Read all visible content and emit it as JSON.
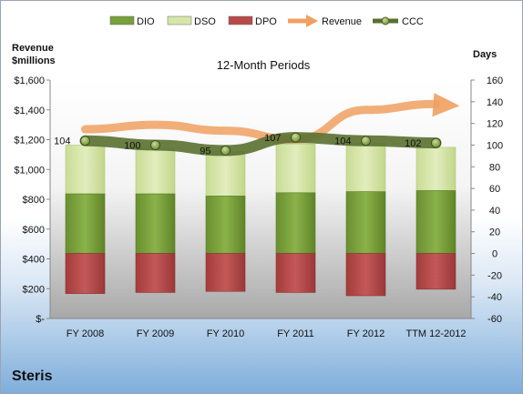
{
  "chart_data": {
    "type": "bar",
    "title": "12-Month Periods",
    "company": "Steris",
    "y_left_label_line1": "Revenue",
    "y_left_label_line2": "$millions",
    "y_right_label": "Days",
    "categories": [
      "FY 2008",
      "FY 2009",
      "FY 2010",
      "FY 2011",
      "FY 2012",
      "TTM 12-2012"
    ],
    "left_axis": {
      "min": 0,
      "max": 1600,
      "step": 200,
      "tick_labels": [
        "$-",
        "$200",
        "$400",
        "$600",
        "$800",
        "$1,000",
        "$1,200",
        "$1,400",
        "$1,600"
      ]
    },
    "right_axis": {
      "min": -60,
      "max": 160,
      "step": 20
    },
    "series": [
      {
        "name": "DIO",
        "color": "#77a03a",
        "values": [
          55,
          55,
          53,
          56,
          57,
          58
        ]
      },
      {
        "name": "DSO",
        "color": "#d6e6a8",
        "values": [
          45,
          42,
          41,
          45,
          45,
          40
        ]
      },
      {
        "name": "DPO",
        "color": "#b84a4a",
        "values": [
          -37,
          -36,
          -35,
          -36,
          -39,
          -33
        ]
      },
      {
        "name": "Revenue",
        "color": "#f0a060",
        "values": [
          1270,
          1300,
          1260,
          1200,
          1400,
          1440
        ]
      },
      {
        "name": "CCC",
        "color": "#5a7030",
        "values": [
          104,
          100,
          95,
          107,
          104,
          102
        ]
      }
    ],
    "ccc_labels": [
      "104",
      "100",
      "95",
      "107",
      "104",
      "102"
    ],
    "legend_position": "top",
    "grid": false
  }
}
